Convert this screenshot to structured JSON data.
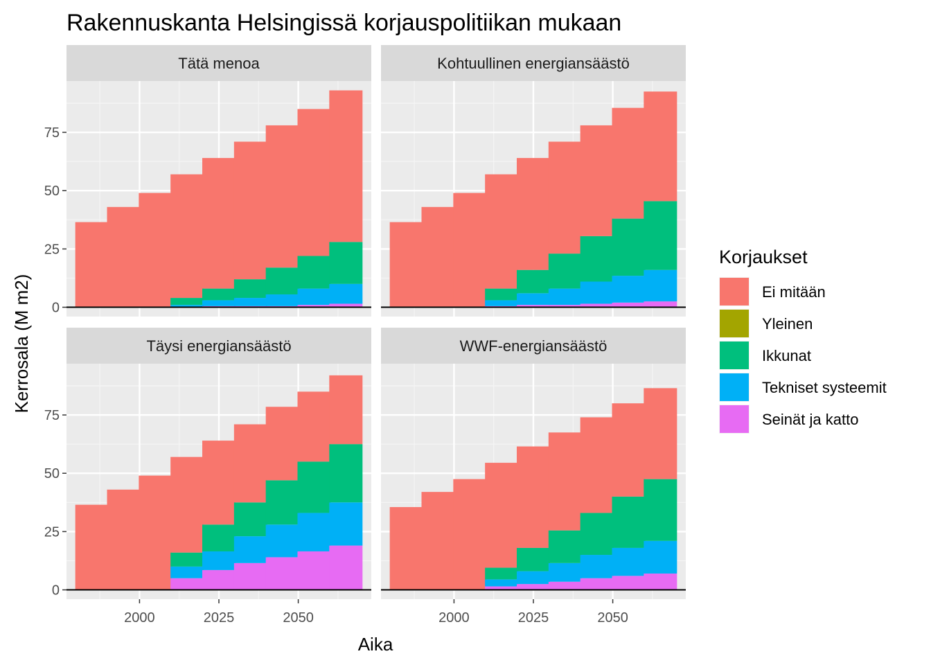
{
  "chart_data": {
    "type": "bar",
    "stacked": true,
    "faceted": true,
    "title": "Rakennuskanta Helsingissä korjauspolitiikan mukaan",
    "xlabel": "Aika",
    "ylabel": "Kerrosala (M m2)",
    "x_ticks": [
      2000,
      2025,
      2050
    ],
    "y_ticks": [
      0,
      25,
      50,
      75
    ],
    "xlim": [
      1977,
      2073
    ],
    "ylim": [
      -4,
      97
    ],
    "grid": true,
    "legend": {
      "title": "Korjaukset",
      "position": "right",
      "items": [
        {
          "key": "ei_mitaan",
          "label": "Ei mitään",
          "color": "#F8766D"
        },
        {
          "key": "yleinen",
          "label": "Yleinen",
          "color": "#A3A500"
        },
        {
          "key": "ikkunat",
          "label": "Ikkunat",
          "color": "#00BF7D"
        },
        {
          "key": "tekniset",
          "label": "Tekniset systeemit",
          "color": "#00B0F6"
        },
        {
          "key": "seinat",
          "label": "Seinät ja katto",
          "color": "#E76BF3"
        }
      ]
    },
    "stack_order_bottom_to_top": [
      "seinat",
      "tekniset",
      "yleinen",
      "ikkunat",
      "ei_mitaan"
    ],
    "years": [
      1985,
      1995,
      2005,
      2015,
      2025,
      2035,
      2045,
      2055,
      2065
    ],
    "panels": [
      {
        "strip": "Tätä menoa",
        "series": {
          "ei_mitaan": [
            36.5,
            43,
            49,
            53,
            56,
            59,
            61,
            63,
            65
          ],
          "yleinen": [
            0,
            0,
            0,
            0,
            0,
            0,
            0,
            0,
            0
          ],
          "ikkunat": [
            0,
            0,
            0,
            3,
            5,
            8,
            11.5,
            14,
            18
          ],
          "tekniset": [
            0,
            0,
            0,
            0.8,
            2.5,
            3.5,
            5,
            7,
            8.5
          ],
          "seinat": [
            0,
            0,
            0,
            0.2,
            0.5,
            0.5,
            0.5,
            1,
            1.5
          ]
        }
      },
      {
        "strip": "Kohtuullinen energiansäästö",
        "series": {
          "ei_mitaan": [
            36.5,
            43,
            49,
            49,
            48,
            48,
            47.5,
            47.5,
            47
          ],
          "yleinen": [
            0,
            0,
            0,
            0,
            0,
            0,
            0,
            0,
            0
          ],
          "ikkunat": [
            0,
            0,
            0,
            5,
            10,
            15,
            19.5,
            24.5,
            29.5
          ],
          "tekniset": [
            0,
            0,
            0,
            2.5,
            5,
            7,
            9.5,
            11.5,
            13.5
          ],
          "seinat": [
            0,
            0,
            0,
            0.5,
            1,
            1,
            1.5,
            2,
            2.5
          ]
        }
      },
      {
        "strip": "Täysi energiansäästö",
        "series": {
          "ei_mitaan": [
            36.5,
            43,
            49,
            41,
            36,
            33.5,
            31.5,
            30,
            29.5
          ],
          "yleinen": [
            0,
            0,
            0,
            0,
            0,
            0,
            0,
            0,
            0
          ],
          "ikkunat": [
            0,
            0,
            0,
            6,
            11.5,
            14.5,
            19,
            22,
            25
          ],
          "tekniset": [
            0,
            0,
            0,
            5,
            8,
            11.5,
            14,
            16.5,
            18.5
          ],
          "seinat": [
            0,
            0,
            0,
            5,
            8.5,
            11.5,
            14,
            16.5,
            19
          ]
        }
      },
      {
        "strip": "WWF-energiansäästö",
        "series": {
          "ei_mitaan": [
            35.5,
            42,
            47.5,
            45,
            43.5,
            42,
            41,
            40,
            39
          ],
          "yleinen": [
            0,
            0,
            0,
            0,
            0,
            0,
            0,
            0,
            0
          ],
          "ikkunat": [
            0,
            0,
            0,
            5,
            10,
            14,
            18,
            22,
            26.5
          ],
          "tekniset": [
            0,
            0,
            0,
            3,
            5.5,
            8,
            10,
            12,
            14
          ],
          "seinat": [
            0,
            0,
            0,
            1.5,
            2.5,
            3.5,
            5,
            6,
            7
          ]
        }
      }
    ]
  }
}
